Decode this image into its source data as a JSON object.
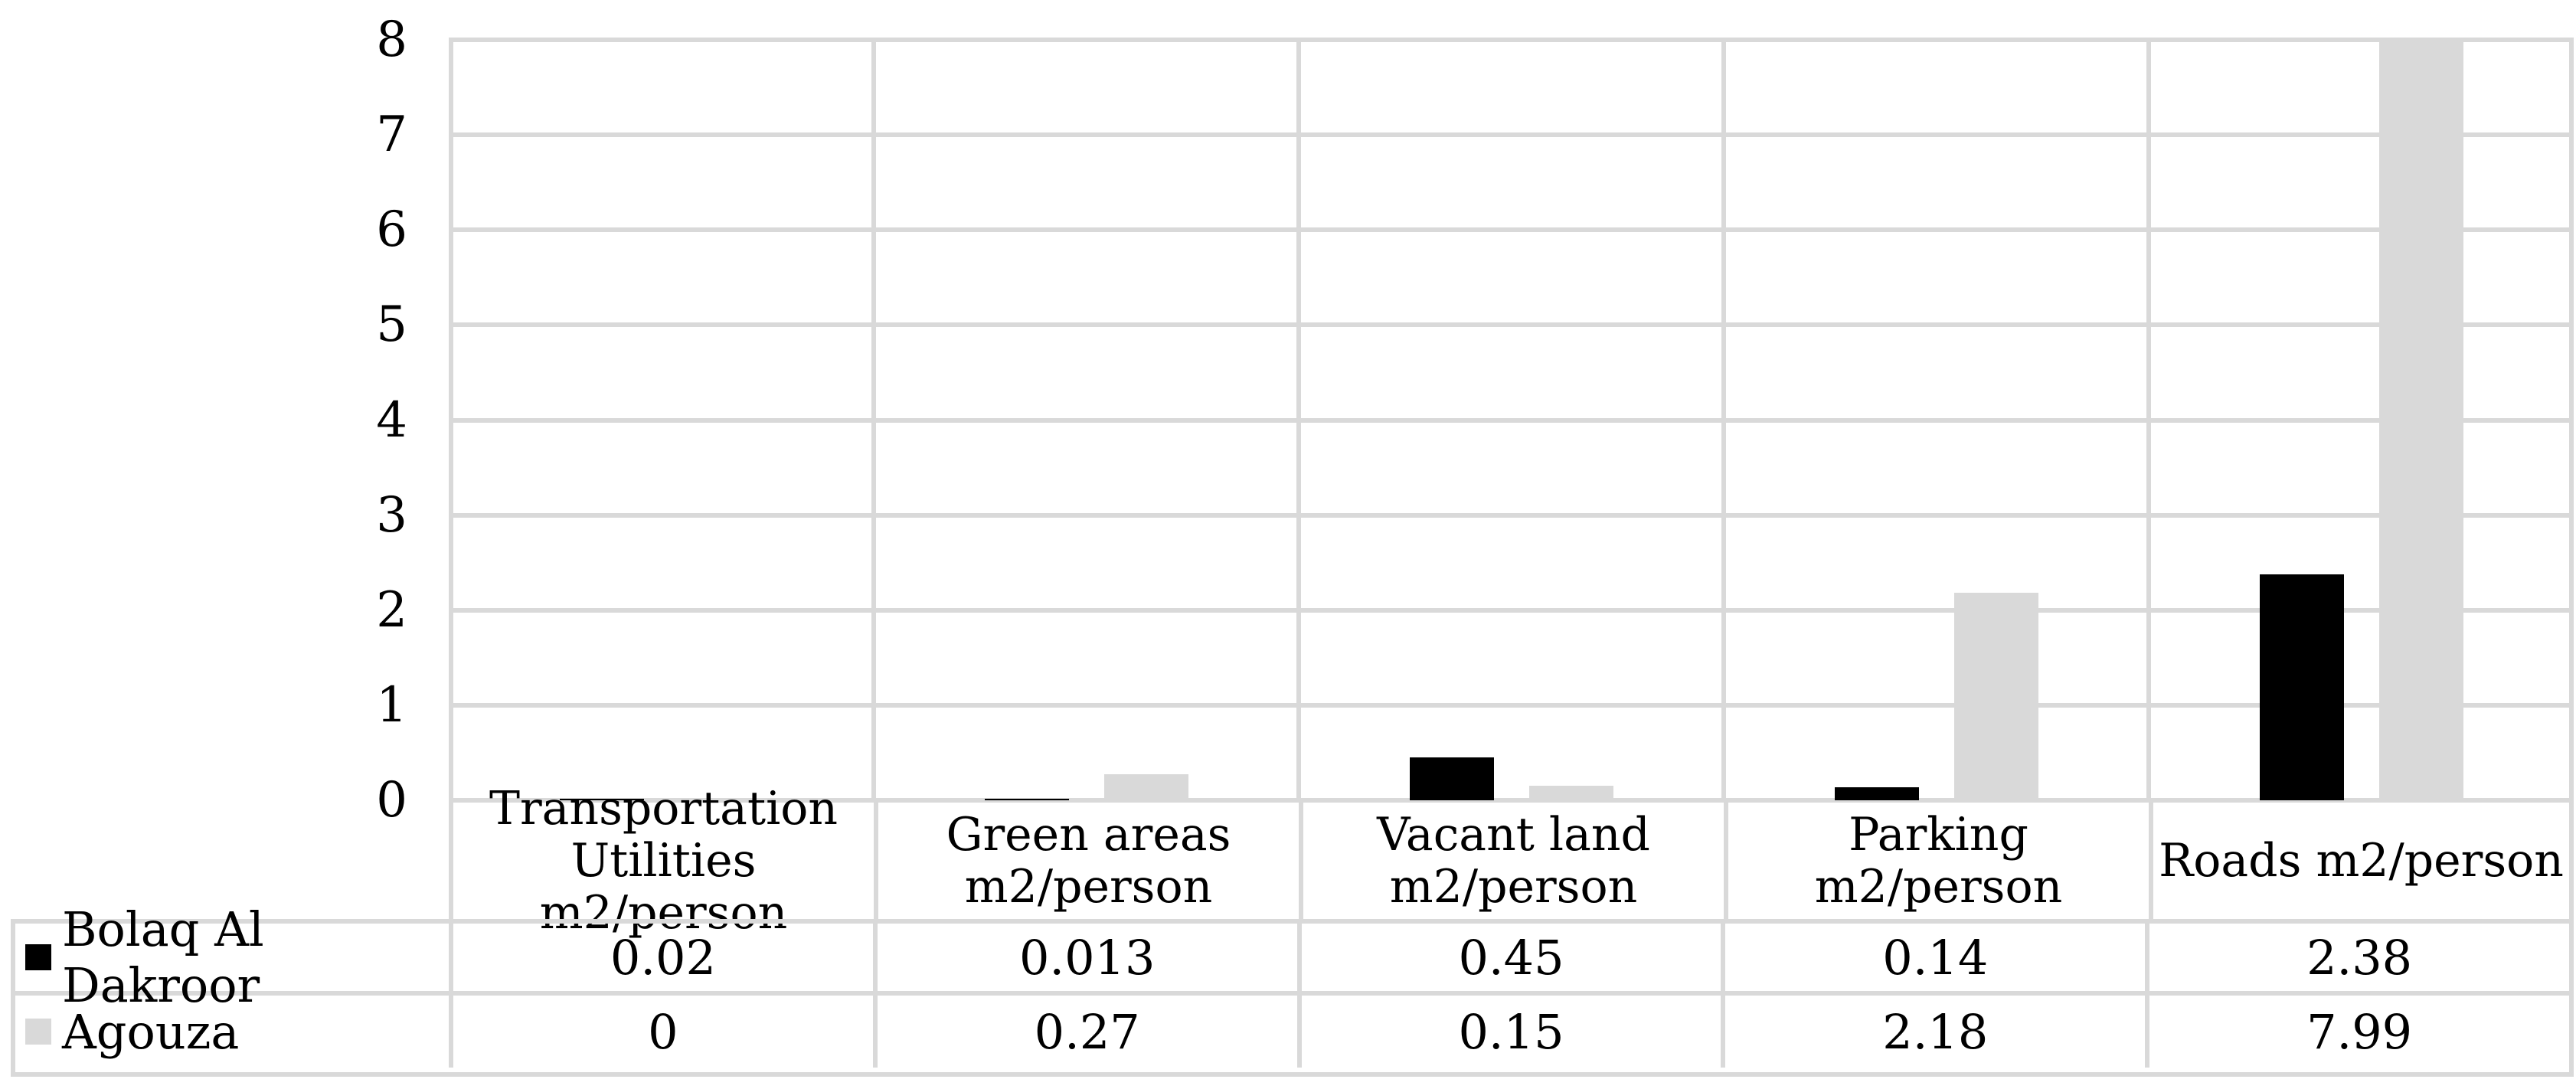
{
  "figure": {
    "background": "#ffffff",
    "grid_color": "#d9d9d9",
    "text_color": "#000000"
  },
  "chart_data": {
    "type": "bar",
    "title": "",
    "xlabel": "",
    "ylabel": "",
    "categories": [
      "Transportation Utilities m2/person",
      "Green areas m2/person",
      "Vacant land m2/person",
      "Parking m2/person",
      "Roads m2/person"
    ],
    "category_label_lines": [
      [
        "Transportation",
        "Utilities m2/person"
      ],
      [
        "Green areas",
        "m2/person"
      ],
      [
        "Vacant land",
        "m2/person"
      ],
      [
        "Parking",
        "m2/person"
      ],
      [
        "Roads m2/person"
      ]
    ],
    "series": [
      {
        "name": "Bolaq Al Dakroor",
        "color": "#000000",
        "values": [
          0.02,
          0.013,
          0.45,
          0.14,
          2.38
        ],
        "value_labels": [
          "0.02",
          "0.013",
          "0.45",
          "0.14",
          "2.38"
        ]
      },
      {
        "name": "Agouza",
        "color": "#d9d9d9",
        "values": [
          0,
          0.27,
          0.15,
          2.18,
          7.99
        ],
        "value_labels": [
          "0",
          "0.27",
          "0.15",
          "2.18",
          "7.99"
        ]
      }
    ],
    "y_axis": {
      "min": 0,
      "max": 8,
      "step": 1,
      "tick_labels": [
        "8",
        "7",
        "6",
        "5",
        "4",
        "3",
        "2",
        "1",
        "0"
      ]
    },
    "ylim": [
      0,
      8
    ],
    "grid": true,
    "gridline_color": "#d9d9d9",
    "bar_colors": {
      "Bolaq Al Dakroor": "#000000",
      "Agouza": "#d9d9d9"
    },
    "legend_position": "table-row-headers"
  }
}
